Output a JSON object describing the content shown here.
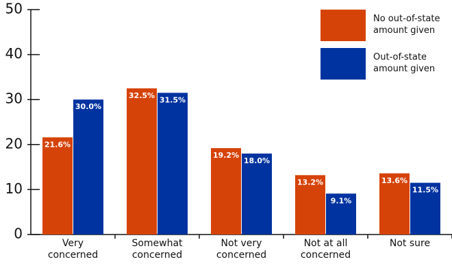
{
  "chart_data": {
    "type": "bar",
    "categories": [
      "Very concerned",
      "Somewhat concerned",
      "Not very concerned",
      "Not at all concerned",
      "Not sure"
    ],
    "series": [
      {
        "name": "No out-of-state amount given",
        "color": "#d64309",
        "values": [
          21.6,
          32.5,
          19.2,
          13.2,
          13.6
        ],
        "value_labels": [
          "21.6%",
          "32.5%",
          "19.2%",
          "13.2%",
          "13.6%"
        ]
      },
      {
        "name": "Out-of-state amount given",
        "color": "#0033a0",
        "values": [
          30.0,
          31.5,
          18.0,
          9.1,
          11.5
        ],
        "value_labels": [
          "30.0%",
          "31.5%",
          "18.0%",
          "9.1%",
          "11.5%"
        ]
      }
    ],
    "ylim": [
      0,
      50
    ],
    "yticks": [
      0,
      10,
      20,
      30,
      40,
      50
    ],
    "legend": "top-right"
  }
}
